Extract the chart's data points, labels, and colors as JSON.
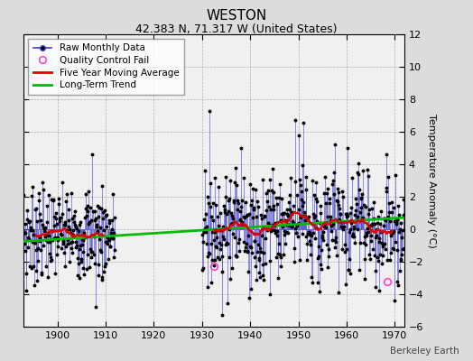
{
  "title": "WESTON",
  "subtitle": "42.383 N, 71.317 W (United States)",
  "ylabel": "Temperature Anomaly (°C)",
  "watermark": "Berkeley Earth",
  "xlim": [
    1893,
    1972
  ],
  "ylim": [
    -6,
    12
  ],
  "yticks": [
    -6,
    -4,
    -2,
    0,
    2,
    4,
    6,
    8,
    10,
    12
  ],
  "xticks": [
    1900,
    1910,
    1920,
    1930,
    1940,
    1950,
    1960,
    1970
  ],
  "bg_color": "#dcdcdc",
  "plot_bg_color": "#f0f0f0",
  "grid_color": "#b0b0b0",
  "raw_line_color": "#4040cc",
  "raw_dot_color": "#000000",
  "ma_color": "#dd0000",
  "trend_color": "#00bb00",
  "qc_color": "#ff44cc",
  "period1_start": 1893,
  "period1_end": 1911,
  "period2_start": 1930,
  "period2_end": 1971,
  "trend_x": [
    1893,
    1972
  ],
  "trend_y": [
    -0.75,
    0.72
  ],
  "qc_points": [
    [
      1932.5,
      -2.3
    ],
    [
      1968.5,
      -3.2
    ]
  ],
  "title_fontsize": 11,
  "subtitle_fontsize": 9,
  "ylabel_fontsize": 8,
  "tick_fontsize": 8,
  "legend_fontsize": 7.5
}
